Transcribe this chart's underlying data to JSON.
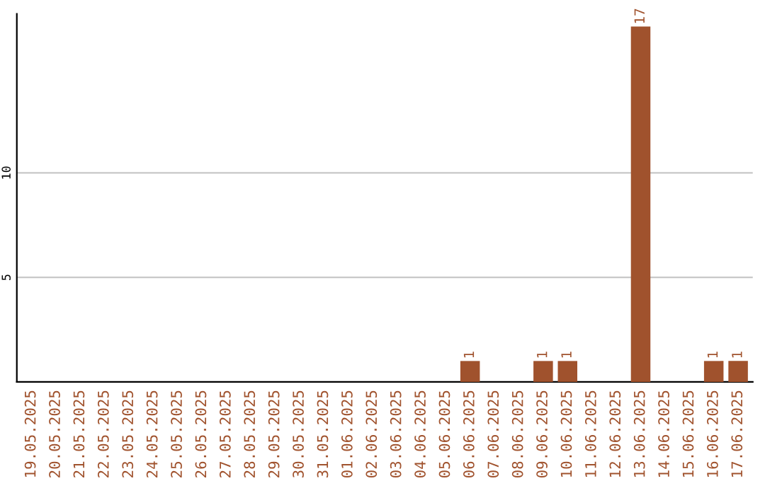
{
  "chart_data": {
    "type": "bar",
    "categories": [
      "19.05.2025",
      "20.05.2025",
      "21.05.2025",
      "22.05.2025",
      "23.05.2025",
      "24.05.2025",
      "25.05.2025",
      "26.05.2025",
      "27.05.2025",
      "28.05.2025",
      "29.05.2025",
      "30.05.2025",
      "31.05.2025",
      "01.06.2025",
      "02.06.2025",
      "03.06.2025",
      "04.06.2025",
      "05.06.2025",
      "06.06.2025",
      "07.06.2025",
      "08.06.2025",
      "09.06.2025",
      "10.06.2025",
      "11.06.2025",
      "12.06.2025",
      "13.06.2025",
      "14.06.2025",
      "15.06.2025",
      "16.06.2025",
      "17.06.2025"
    ],
    "values": [
      0,
      0,
      0,
      0,
      0,
      0,
      0,
      0,
      0,
      0,
      0,
      0,
      0,
      0,
      0,
      0,
      0,
      0,
      1,
      0,
      0,
      1,
      1,
      0,
      0,
      17,
      0,
      0,
      1,
      1
    ],
    "value_labels": [
      null,
      null,
      null,
      null,
      null,
      null,
      null,
      null,
      null,
      null,
      null,
      null,
      null,
      null,
      null,
      null,
      null,
      null,
      "1",
      null,
      null,
      "1",
      "1",
      null,
      null,
      "17",
      null,
      null,
      "1",
      "1"
    ],
    "color": "#a0522d",
    "ylim": [
      0,
      17.6
    ],
    "yticks": [
      5,
      10
    ],
    "grid": "y"
  }
}
